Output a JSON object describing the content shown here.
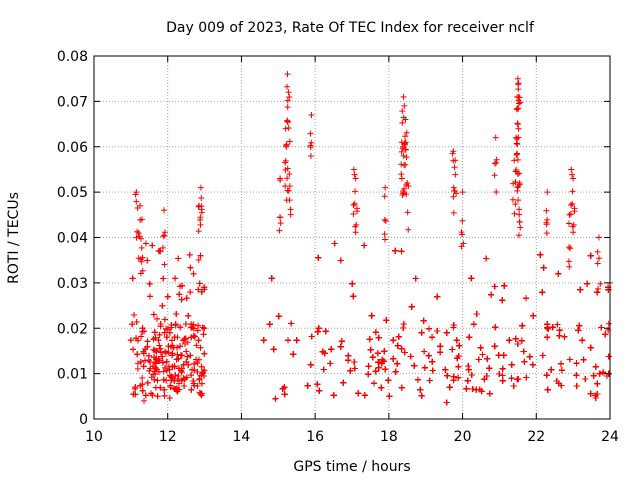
{
  "chart_data": {
    "type": "scatter",
    "title": "Day 009 of 2023, Rate Of TEC Index for receiver nclf",
    "xlabel": "GPS time / hours",
    "ylabel": "ROTI / TECUs",
    "xlim": [
      10,
      24
    ],
    "ylim": [
      0,
      0.08
    ],
    "xticks": [
      "10",
      "12",
      "14",
      "16",
      "18",
      "20",
      "22",
      "24"
    ],
    "yticks": [
      "0",
      "0.01",
      "0.02",
      "0.03",
      "0.04",
      "0.05",
      "0.06",
      "0.07",
      "0.08"
    ],
    "grid": true,
    "marker": "+",
    "color": "#ff0000",
    "series": [
      {
        "name": "nclf",
        "segments": [
          {
            "x_start": 11.0,
            "x_end": 13.0,
            "base_min": 0.004,
            "base_max": 0.03
          },
          {
            "x_start": 14.6,
            "x_end": 24.0,
            "base_min": 0.003,
            "base_max": 0.03
          }
        ],
        "peaks": [
          {
            "x": 11.15,
            "y": 0.05
          },
          {
            "x": 11.25,
            "y": 0.047
          },
          {
            "x": 11.3,
            "y": 0.044
          },
          {
            "x": 11.9,
            "y": 0.046
          },
          {
            "x": 12.9,
            "y": 0.051
          },
          {
            "x": 12.85,
            "y": 0.047
          },
          {
            "x": 15.25,
            "y": 0.076
          },
          {
            "x": 15.28,
            "y": 0.072
          },
          {
            "x": 15.2,
            "y": 0.064
          },
          {
            "x": 15.22,
            "y": 0.06
          },
          {
            "x": 15.3,
            "y": 0.054
          },
          {
            "x": 15.05,
            "y": 0.053
          },
          {
            "x": 15.9,
            "y": 0.067
          },
          {
            "x": 17.05,
            "y": 0.055
          },
          {
            "x": 17.1,
            "y": 0.053
          },
          {
            "x": 17.9,
            "y": 0.051
          },
          {
            "x": 18.4,
            "y": 0.071
          },
          {
            "x": 18.42,
            "y": 0.069
          },
          {
            "x": 18.45,
            "y": 0.066
          },
          {
            "x": 18.35,
            "y": 0.061
          },
          {
            "x": 18.4,
            "y": 0.058
          },
          {
            "x": 18.5,
            "y": 0.052
          },
          {
            "x": 19.75,
            "y": 0.059
          },
          {
            "x": 19.8,
            "y": 0.057
          },
          {
            "x": 20.0,
            "y": 0.05
          },
          {
            "x": 20.9,
            "y": 0.062
          },
          {
            "x": 21.5,
            "y": 0.075
          },
          {
            "x": 21.52,
            "y": 0.074
          },
          {
            "x": 21.48,
            "y": 0.071
          },
          {
            "x": 21.5,
            "y": 0.065
          },
          {
            "x": 21.45,
            "y": 0.062
          },
          {
            "x": 21.4,
            "y": 0.057
          },
          {
            "x": 21.5,
            "y": 0.054
          },
          {
            "x": 21.55,
            "y": 0.052
          },
          {
            "x": 22.3,
            "y": 0.05
          },
          {
            "x": 22.95,
            "y": 0.055
          },
          {
            "x": 23.0,
            "y": 0.053
          },
          {
            "x": 22.9,
            "y": 0.045
          },
          {
            "x": 23.7,
            "y": 0.04
          },
          {
            "x": 24.0,
            "y": 0.03
          }
        ]
      }
    ]
  }
}
